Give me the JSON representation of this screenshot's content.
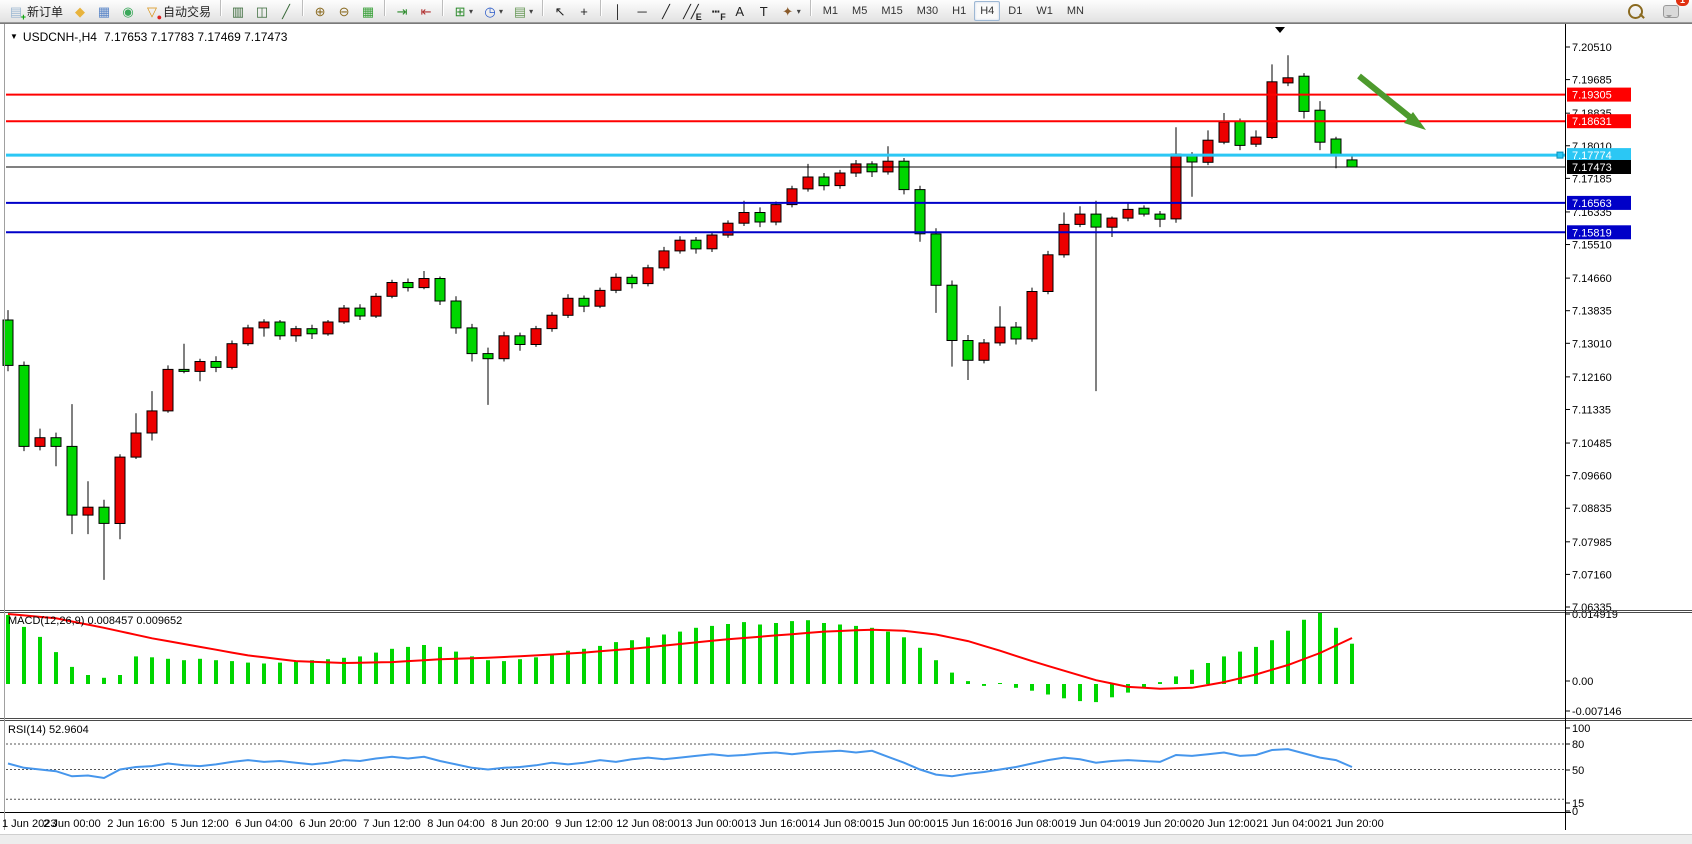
{
  "toolbar": {
    "buttons": [
      {
        "name": "new-order",
        "glyph": "▤",
        "color": "#9db8d2",
        "ov": "+",
        "ovc": "#00a000",
        "label": "新订单"
      },
      {
        "name": "metaeditor",
        "glyph": "◆",
        "color": "#e8b33c"
      },
      {
        "name": "terminal-window",
        "glyph": "▦",
        "color": "#5a86c8"
      },
      {
        "name": "signals",
        "glyph": "◉",
        "color": "#3aa85a"
      },
      {
        "name": "autotrading",
        "glyph": "▽",
        "color": "#d89010",
        "ov": "●",
        "ovc": "#dd2222",
        "label": "自动交易"
      },
      {
        "name": "sep"
      },
      {
        "name": "bar-chart",
        "glyph": "▥",
        "color": "#3a6a3a"
      },
      {
        "name": "candlestick-chart",
        "glyph": "◫",
        "color": "#3a6a3a"
      },
      {
        "name": "line-chart",
        "glyph": "╱",
        "color": "#3a6a3a"
      },
      {
        "name": "sep"
      },
      {
        "name": "zoom-in",
        "glyph": "⊕",
        "color": "#8a6a20"
      },
      {
        "name": "zoom-out",
        "glyph": "⊖",
        "color": "#8a6a20"
      },
      {
        "name": "tile-windows",
        "glyph": "▦",
        "color": "#38a038"
      },
      {
        "name": "sep"
      },
      {
        "name": "auto-scroll",
        "glyph": "⇥",
        "color": "#2a8a2a"
      },
      {
        "name": "chart-shift",
        "glyph": "⇤",
        "color": "#b03030"
      },
      {
        "name": "sep"
      },
      {
        "name": "indicators",
        "glyph": "⊞",
        "color": "#2a8a2a",
        "dd": true
      },
      {
        "name": "periods",
        "glyph": "◷",
        "color": "#2a5ac8",
        "dd": true
      },
      {
        "name": "templates",
        "glyph": "▤",
        "color": "#6a9a5a",
        "dd": true
      },
      {
        "name": "sep"
      },
      {
        "name": "cursor",
        "glyph": "↖",
        "color": "#222222"
      },
      {
        "name": "crosshair",
        "glyph": "+",
        "color": "#222222"
      },
      {
        "name": "sep"
      },
      {
        "name": "vertical-line",
        "glyph": "│",
        "color": "#222222"
      },
      {
        "name": "horizontal-line",
        "glyph": "─",
        "color": "#222222"
      },
      {
        "name": "trendline",
        "glyph": "╱",
        "color": "#222222"
      },
      {
        "name": "equidistant-channel",
        "glyph": "╱╱",
        "color": "#222222",
        "ov": "E",
        "ovc": "#222222"
      },
      {
        "name": "fibonacci",
        "glyph": "┅",
        "color": "#222222",
        "ov": "F",
        "ovc": "#222222"
      },
      {
        "name": "text",
        "glyph": "A",
        "color": "#222222"
      },
      {
        "name": "text-label",
        "glyph": "T",
        "color": "#222222"
      },
      {
        "name": "arrows-tool",
        "glyph": "✦",
        "color": "#8a5a2a",
        "dd": true
      },
      {
        "name": "sep"
      }
    ],
    "timeframes": [
      "M1",
      "M5",
      "M15",
      "M30",
      "H1",
      "H4",
      "D1",
      "W1",
      "MN"
    ],
    "active_timeframe": "H4",
    "chat_badge": "1"
  },
  "header": {
    "caret": "▼",
    "symbol": "USDCNH-,H4",
    "ohlc": "7.17653 7.17783 7.17469 7.17473"
  },
  "price_axis": {
    "labels": [
      "7.20510",
      "7.19685",
      "7.18835",
      "7.18010",
      "7.17185",
      "7.16335",
      "7.15510",
      "7.14660",
      "7.13835",
      "7.13010",
      "7.12160",
      "7.11335",
      "7.10485",
      "7.09660",
      "7.08835",
      "7.07985",
      "7.07160",
      "7.06335"
    ]
  },
  "hlines": [
    {
      "name": "resistance-line-1",
      "price": 7.19305,
      "label": "7.19305",
      "color": "#ff0000",
      "width": 2
    },
    {
      "name": "resistance-line-2",
      "price": 7.18631,
      "label": "7.18631",
      "color": "#ff0000",
      "width": 2
    },
    {
      "name": "current-price-line",
      "price": 7.17774,
      "label": "7.17774",
      "color": "#2bc7f4",
      "width": 3
    },
    {
      "name": "last-close-line",
      "price": 7.17473,
      "label": "7.17473",
      "color": "#000000",
      "width": 1
    },
    {
      "name": "support-line-1",
      "price": 7.16563,
      "label": "7.16563",
      "color": "#0000c8",
      "width": 2
    },
    {
      "name": "support-line-2",
      "price": 7.15819,
      "label": "7.15819",
      "color": "#0000c8",
      "width": 2
    }
  ],
  "macd": {
    "label": "MACD(12,26,9) 0.008457 0.009652",
    "scale": [
      "0.014919",
      "0.00",
      "-0.007146"
    ]
  },
  "rsi": {
    "label": "RSI(14) 52.9604",
    "scale": [
      "100",
      "80",
      "50",
      "15",
      "0"
    ]
  },
  "time_axis": {
    "labels": [
      "1 Jun 2023",
      "2 Jun 00:00",
      "2 Jun 16:00",
      "5 Jun 12:00",
      "6 Jun 04:00",
      "6 Jun 20:00",
      "7 Jun 12:00",
      "8 Jun 04:00",
      "8 Jun 20:00",
      "9 Jun 12:00",
      "12 Jun 08:00",
      "13 Jun 00:00",
      "13 Jun 16:00",
      "14 Jun 08:00",
      "15 Jun 00:00",
      "15 Jun 16:00",
      "16 Jun 08:00",
      "19 Jun 04:00",
      "19 Jun 20:00",
      "20 Jun 12:00",
      "21 Jun 04:00",
      "21 Jun 20:00"
    ]
  },
  "chart_data": {
    "type": "candlestick-multi-panel",
    "symbol": "USDCNH",
    "timeframe": "H4",
    "price_range": {
      "max": 7.2051,
      "min": 7.06335
    },
    "colors": {
      "bull": "#ec0000",
      "bear": "#00d600",
      "wick": "#000000",
      "macd_hist": "#00d600",
      "macd_signal": "#ff0000",
      "rsi_line": "#4696ec",
      "annotation_arrow": "#4d9a2d"
    },
    "candles_ohlc": [
      [
        7.136,
        7.1385,
        7.123,
        7.1245
      ],
      [
        7.1245,
        7.1255,
        7.1028,
        7.104
      ],
      [
        7.104,
        7.1085,
        7.103,
        7.1062
      ],
      [
        7.1062,
        7.1075,
        7.099,
        7.104
      ],
      [
        7.104,
        7.1147,
        7.0818,
        7.0866
      ],
      [
        7.0866,
        7.0952,
        7.0818,
        7.0886
      ],
      [
        7.0886,
        7.0905,
        7.0702,
        7.0845
      ],
      [
        7.0845,
        7.102,
        7.0805,
        7.1013
      ],
      [
        7.1013,
        7.1124,
        7.1008,
        7.1074
      ],
      [
        7.1074,
        7.118,
        7.1055,
        7.113
      ],
      [
        7.113,
        7.1245,
        7.1125,
        7.1235
      ],
      [
        7.1235,
        7.13,
        7.1225,
        7.123
      ],
      [
        7.123,
        7.1262,
        7.1205,
        7.1255
      ],
      [
        7.1255,
        7.1268,
        7.1228,
        7.124
      ],
      [
        7.124,
        7.1308,
        7.1235,
        7.13
      ],
      [
        7.13,
        7.1348,
        7.1295,
        7.134
      ],
      [
        7.134,
        7.1362,
        7.1318,
        7.1355
      ],
      [
        7.1355,
        7.136,
        7.131,
        7.132
      ],
      [
        7.132,
        7.1345,
        7.1305,
        7.1338
      ],
      [
        7.1338,
        7.1348,
        7.1312,
        7.1325
      ],
      [
        7.1325,
        7.136,
        7.132,
        7.1355
      ],
      [
        7.1355,
        7.1398,
        7.135,
        7.139
      ],
      [
        7.139,
        7.14,
        7.136,
        7.137
      ],
      [
        7.137,
        7.1428,
        7.1365,
        7.142
      ],
      [
        7.142,
        7.1462,
        7.1415,
        7.1455
      ],
      [
        7.1455,
        7.1465,
        7.1432,
        7.1442
      ],
      [
        7.1442,
        7.1484,
        7.1438,
        7.1465
      ],
      [
        7.1465,
        7.147,
        7.1398,
        7.1408
      ],
      [
        7.1408,
        7.142,
        7.1325,
        7.134
      ],
      [
        7.134,
        7.135,
        7.1255,
        7.1275
      ],
      [
        7.1275,
        7.129,
        7.1145,
        7.1262
      ],
      [
        7.1262,
        7.133,
        7.1255,
        7.132
      ],
      [
        7.132,
        7.1328,
        7.1282,
        7.1298
      ],
      [
        7.1298,
        7.1345,
        7.1292,
        7.1338
      ],
      [
        7.1338,
        7.138,
        7.133,
        7.1372
      ],
      [
        7.1372,
        7.1425,
        7.1365,
        7.1415
      ],
      [
        7.1415,
        7.1422,
        7.138,
        7.1395
      ],
      [
        7.1395,
        7.1442,
        7.139,
        7.1435
      ],
      [
        7.1435,
        7.1478,
        7.1428,
        7.1468
      ],
      [
        7.1468,
        7.1475,
        7.144,
        7.1452
      ],
      [
        7.1452,
        7.15,
        7.1445,
        7.1492
      ],
      [
        7.1492,
        7.1545,
        7.1485,
        7.1535
      ],
      [
        7.1535,
        7.1572,
        7.1528,
        7.1562
      ],
      [
        7.1562,
        7.157,
        7.1528,
        7.154
      ],
      [
        7.154,
        7.1582,
        7.1532,
        7.1575
      ],
      [
        7.1575,
        7.1612,
        7.1568,
        7.1605
      ],
      [
        7.1605,
        7.1662,
        7.1598,
        7.1632
      ],
      [
        7.1632,
        7.1645,
        7.1595,
        7.1608
      ],
      [
        7.1608,
        7.166,
        7.16,
        7.1652
      ],
      [
        7.1652,
        7.17,
        7.1645,
        7.1692
      ],
      [
        7.1692,
        7.1755,
        7.1685,
        7.1722
      ],
      [
        7.1722,
        7.1732,
        7.1688,
        7.17
      ],
      [
        7.17,
        7.174,
        7.1692,
        7.1732
      ],
      [
        7.1732,
        7.1765,
        7.1722,
        7.1755
      ],
      [
        7.1755,
        7.1762,
        7.1722,
        7.1735
      ],
      [
        7.1735,
        7.18,
        7.1728,
        7.1762
      ],
      [
        7.1762,
        7.177,
        7.1678,
        7.169
      ],
      [
        7.169,
        7.17,
        7.1558,
        7.1578
      ],
      [
        7.1578,
        7.1592,
        7.1378,
        7.1448
      ],
      [
        7.1448,
        7.146,
        7.1242,
        7.1308
      ],
      [
        7.1308,
        7.1322,
        7.1208,
        7.1258
      ],
      [
        7.1258,
        7.1312,
        7.125,
        7.1302
      ],
      [
        7.1302,
        7.1395,
        7.1295,
        7.1342
      ],
      [
        7.1342,
        7.1355,
        7.1298,
        7.1312
      ],
      [
        7.1312,
        7.1442,
        7.1305,
        7.1432
      ],
      [
        7.1432,
        7.1535,
        7.1425,
        7.1525
      ],
      [
        7.1525,
        7.1632,
        7.1518,
        7.1602
      ],
      [
        7.1602,
        7.1648,
        7.1595,
        7.1628
      ],
      [
        7.1628,
        7.1662,
        7.118,
        7.1595
      ],
      [
        7.1595,
        7.1622,
        7.157,
        7.1618
      ],
      [
        7.1618,
        7.1655,
        7.161,
        7.164
      ],
      [
        7.1643,
        7.165,
        7.1622,
        7.1628
      ],
      [
        7.1628,
        7.1636,
        7.1595,
        7.1615
      ],
      [
        7.1616,
        7.1848,
        7.1606,
        7.178
      ],
      [
        7.1779,
        7.1785,
        7.1672,
        7.176
      ],
      [
        7.1759,
        7.184,
        7.1752,
        7.1815
      ],
      [
        7.181,
        7.1884,
        7.1805,
        7.1861
      ],
      [
        7.1863,
        7.187,
        7.179,
        7.1802
      ],
      [
        7.1805,
        7.184,
        7.1798,
        7.1823
      ],
      [
        7.1822,
        7.2007,
        7.1818,
        7.1963
      ],
      [
        7.196,
        7.203,
        7.1952,
        7.1973
      ],
      [
        7.1977,
        7.1985,
        7.187,
        7.1888
      ],
      [
        7.1891,
        7.1914,
        7.179,
        7.181
      ],
      [
        7.1818,
        7.1824,
        7.1744,
        7.1777
      ],
      [
        7.17653,
        7.17783,
        7.17469,
        7.17473
      ]
    ],
    "macd_histogram": [
      0.0145,
      0.012,
      0.0099,
      0.0067,
      0.0036,
      0.0019,
      0.0013,
      0.0019,
      0.0058,
      0.0056,
      0.0053,
      0.005,
      0.0053,
      0.005,
      0.0048,
      0.0045,
      0.0043,
      0.0045,
      0.0048,
      0.005,
      0.0052,
      0.0055,
      0.0058,
      0.0066,
      0.0074,
      0.0078,
      0.0082,
      0.0078,
      0.0068,
      0.0058,
      0.005,
      0.0048,
      0.0052,
      0.0056,
      0.0063,
      0.007,
      0.0074,
      0.008,
      0.0088,
      0.0092,
      0.0098,
      0.0104,
      0.011,
      0.0118,
      0.0122,
      0.0126,
      0.013,
      0.0125,
      0.0128,
      0.0132,
      0.0134,
      0.0128,
      0.0125,
      0.0122,
      0.0118,
      0.011,
      0.0098,
      0.0076,
      0.005,
      0.0024,
      0.0006,
      -0.0004,
      0.0002,
      -0.0008,
      -0.0014,
      -0.0022,
      -0.003,
      -0.0036,
      -0.0038,
      -0.0028,
      -0.0018,
      -0.0008,
      0.0004,
      0.0016,
      0.003,
      0.0044,
      0.0058,
      0.0068,
      0.0078,
      0.0092,
      0.0112,
      0.0135,
      0.0149,
      0.0118,
      0.008457
    ],
    "macd_signal_keypoints": [
      [
        0,
        0.0147
      ],
      [
        3,
        0.0138
      ],
      [
        6,
        0.0118
      ],
      [
        9,
        0.0096
      ],
      [
        12,
        0.0078
      ],
      [
        15,
        0.006
      ],
      [
        18,
        0.0048
      ],
      [
        21,
        0.0044
      ],
      [
        24,
        0.0046
      ],
      [
        27,
        0.0052
      ],
      [
        30,
        0.0055
      ],
      [
        33,
        0.006
      ],
      [
        36,
        0.0066
      ],
      [
        39,
        0.0074
      ],
      [
        42,
        0.0084
      ],
      [
        45,
        0.0094
      ],
      [
        48,
        0.0102
      ],
      [
        51,
        0.011
      ],
      [
        54,
        0.0114
      ],
      [
        56,
        0.0112
      ],
      [
        58,
        0.0104
      ],
      [
        60,
        0.009
      ],
      [
        62,
        0.007
      ],
      [
        64,
        0.0048
      ],
      [
        66,
        0.0028
      ],
      [
        68,
        0.0008
      ],
      [
        70,
        -0.0006
      ],
      [
        72,
        -0.001
      ],
      [
        74,
        -0.0008
      ],
      [
        76,
        0.0004
      ],
      [
        78,
        0.002
      ],
      [
        80,
        0.004
      ],
      [
        82,
        0.0065
      ],
      [
        84,
        0.009652
      ]
    ],
    "rsi_values": [
      57,
      52,
      50,
      48,
      42,
      43,
      40,
      50,
      53,
      54,
      57,
      55,
      54,
      56,
      59,
      61,
      59,
      60,
      58,
      56,
      58,
      61,
      60,
      63,
      65,
      63,
      65,
      60,
      56,
      52,
      50,
      52,
      53,
      55,
      58,
      56,
      58,
      61,
      59,
      62,
      64,
      62,
      64,
      66,
      68,
      66,
      67,
      69,
      70,
      68,
      70,
      71,
      72,
      70,
      72,
      65,
      58,
      50,
      44,
      42,
      45,
      47,
      50,
      53,
      57,
      61,
      64,
      62,
      58,
      60,
      61,
      60,
      59,
      67,
      66,
      68,
      70,
      66,
      67,
      73,
      74,
      69,
      64,
      61,
      53
    ],
    "rsi_levels": [
      80,
      50,
      15
    ]
  }
}
